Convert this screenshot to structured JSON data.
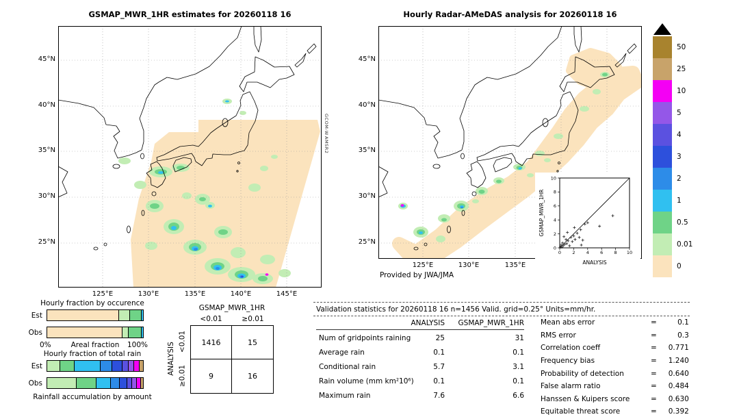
{
  "palette": {
    "gt50": "#a8832e",
    "25-50": "#c8a36a",
    "10-25": "#f400f4",
    "5-10": "#9457e8",
    "4-5": "#5b51e0",
    "3-4": "#2d50dc",
    "2-3": "#2d8ce8",
    "1-2": "#30c0f0",
    "0.5-1": "#6fd387",
    "0.01-0.5": "#c2edb4",
    "0-0.01": "#fbe3bd"
  },
  "colorbar": {
    "triangle_color": "#000000",
    "segments": [
      {
        "level": "gt50",
        "label": "50"
      },
      {
        "level": "25-50",
        "label": "25"
      },
      {
        "level": "10-25",
        "label": "10"
      },
      {
        "level": "5-10",
        "label": "5"
      },
      {
        "level": "4-5",
        "label": "4"
      },
      {
        "level": "3-4",
        "label": "3"
      },
      {
        "level": "2-3",
        "label": "2"
      },
      {
        "level": "1-2",
        "label": "1"
      },
      {
        "level": "0.5-1",
        "label": "0.5"
      },
      {
        "level": "0.01-0.5",
        "label": "0.01"
      },
      {
        "level": "0-0.01",
        "label": "0"
      }
    ]
  },
  "left_map": {
    "title": "GSMAP_MWR_1HR estimates for 20260118 16",
    "satellite_label_line1": "GCOM-W",
    "satellite_label_line2": "AMSR2"
  },
  "right_map": {
    "title": "Hourly Radar-AMeDAS analysis for 20260118 16",
    "credit": "Provided by JWA/JMA"
  },
  "map_axes": {
    "lat_labels": [
      "45°N",
      "40°N",
      "35°N",
      "30°N",
      "25°N"
    ],
    "lon_labels": [
      "125°E",
      "130°E",
      "135°E",
      "140°E",
      "145°E"
    ]
  },
  "chart_data": [
    {
      "type": "scatter",
      "xlabel": "ANALYSIS",
      "ylabel": "GSMAP_MWR_1HR",
      "xlim": [
        0,
        10
      ],
      "ylim": [
        0,
        10
      ],
      "ticks": [
        0,
        2,
        4,
        6,
        8,
        10
      ],
      "identity_line": true,
      "points": [
        [
          0.1,
          0.1
        ],
        [
          0.2,
          0.4
        ],
        [
          0.3,
          0.1
        ],
        [
          0.4,
          0.7
        ],
        [
          0.5,
          0.3
        ],
        [
          0.7,
          0.5
        ],
        [
          0.9,
          1.2
        ],
        [
          1.0,
          0.6
        ],
        [
          1.2,
          1.0
        ],
        [
          1.4,
          0.3
        ],
        [
          1.6,
          1.5
        ],
        [
          1.8,
          0.9
        ],
        [
          2.0,
          1.7
        ],
        [
          2.2,
          1.2
        ],
        [
          2.5,
          2.1
        ],
        [
          2.8,
          1.5
        ],
        [
          3.0,
          2.6
        ],
        [
          3.3,
          1.1
        ],
        [
          3.6,
          3.4
        ],
        [
          4.0,
          3.6
        ],
        [
          1.1,
          2.2
        ],
        [
          0.6,
          1.6
        ],
        [
          2.1,
          2.9
        ],
        [
          5.7,
          3.1
        ],
        [
          7.6,
          4.6
        ],
        [
          3.1,
          0.4
        ]
      ]
    },
    {
      "type": "bar",
      "stacked": true,
      "orientation": "horizontal",
      "title": "Hourly fraction by occurence",
      "categories": [
        "Est",
        "Obs"
      ],
      "axis_min_label": "0%",
      "axis_caption": "Areal fraction",
      "axis_max_label": "100%",
      "series": [
        {
          "level": "0-0.01",
          "values": [
            0.74,
            0.78
          ]
        },
        {
          "level": "0.01-0.5",
          "values": [
            0.12,
            0.06
          ]
        },
        {
          "level": "0.5-1",
          "values": [
            0.12,
            0.14
          ]
        },
        {
          "level": "1-2",
          "values": [
            0.02,
            0.02
          ]
        }
      ]
    },
    {
      "type": "bar",
      "stacked": true,
      "orientation": "horizontal",
      "title": "Hourly fraction of total rain",
      "categories": [
        "Est",
        "Obs"
      ],
      "axis_caption": "Rainfall accumulation by amount",
      "series": [
        {
          "level": "0.01-0.5",
          "values": [
            0.13,
            0.3
          ]
        },
        {
          "level": "0.5-1",
          "values": [
            0.15,
            0.21
          ]
        },
        {
          "level": "1-2",
          "values": [
            0.27,
            0.15
          ]
        },
        {
          "level": "2-3",
          "values": [
            0.12,
            0.09
          ]
        },
        {
          "level": "3-4",
          "values": [
            0.11,
            0.08
          ]
        },
        {
          "level": "4-5",
          "values": [
            0.06,
            0.05
          ]
        },
        {
          "level": "5-10",
          "values": [
            0.06,
            0.05
          ]
        },
        {
          "level": "10-25",
          "values": [
            0.06,
            0.04
          ]
        },
        {
          "level": "25-50",
          "values": [
            0.04,
            0.03
          ]
        }
      ]
    },
    {
      "type": "table",
      "title": "GSMAP_MWR_1HR",
      "row_axis": "ANALYSIS",
      "col_headers": [
        "<0.01",
        "≥0.01"
      ],
      "row_headers": [
        "<0.01",
        "≥0.01"
      ],
      "cells": [
        [
          1416,
          15
        ],
        [
          9,
          16
        ]
      ]
    },
    {
      "type": "table",
      "title": "Validation statistics for 20260118 16  n=1456 Valid. grid=0.25° Units=mm/hr.",
      "col_headers": [
        "ANALYSIS",
        "GSMAP_MWR_1HR"
      ],
      "rows": [
        {
          "label": "Num of gridpoints raining",
          "values": [
            "25",
            "31"
          ]
        },
        {
          "label": "Average rain",
          "values": [
            "0.1",
            "0.1"
          ]
        },
        {
          "label": "Conditional rain",
          "values": [
            "5.7",
            "3.1"
          ]
        },
        {
          "label": "Rain volume (mm km²10⁶)",
          "values": [
            "0.1",
            "0.1"
          ]
        },
        {
          "label": "Maximum rain",
          "values": [
            "7.6",
            "6.6"
          ]
        }
      ],
      "scores": [
        {
          "label": "Mean abs error",
          "value": "0.1"
        },
        {
          "label": "RMS error",
          "value": "0.3"
        },
        {
          "label": "Correlation coeff",
          "value": "0.771"
        },
        {
          "label": "Frequency bias",
          "value": "1.240"
        },
        {
          "label": "Probability of detection",
          "value": "0.640"
        },
        {
          "label": "False alarm ratio",
          "value": "0.484"
        },
        {
          "label": "Hanssen & Kuipers score",
          "value": "0.630"
        },
        {
          "label": "Equitable threat score",
          "value": "0.392"
        }
      ]
    }
  ]
}
